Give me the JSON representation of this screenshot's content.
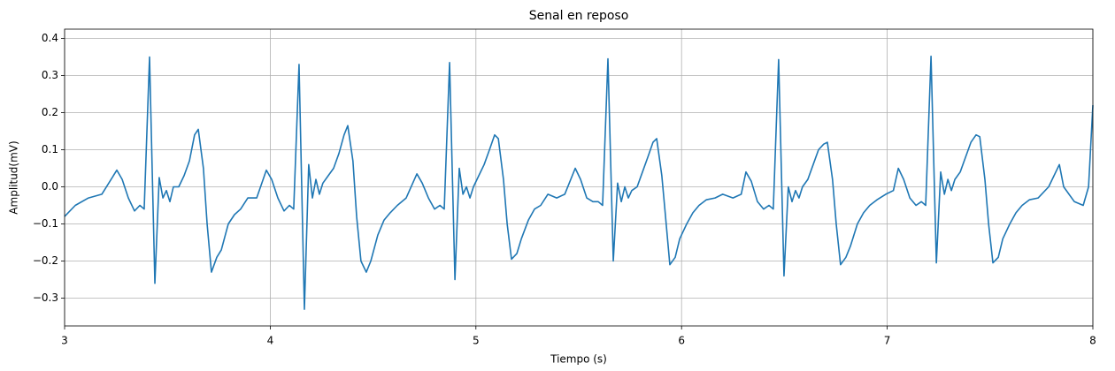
{
  "chart_data": {
    "type": "line",
    "title": "Senal en reposo",
    "xlabel": "Tiempo (s)",
    "ylabel": "Amplitud(mV)",
    "xlim": [
      3,
      8
    ],
    "xticks": [
      3,
      4,
      5,
      6,
      7,
      8
    ],
    "ylim": [
      -0.375,
      0.425
    ],
    "yticks": [
      {
        "value": -0.3,
        "label": "−0.3"
      },
      {
        "value": -0.2,
        "label": "−0.2"
      },
      {
        "value": -0.1,
        "label": "−0.1"
      },
      {
        "value": 0,
        "label": "0.0"
      },
      {
        "value": 0.1,
        "label": "0.1"
      },
      {
        "value": 0.2,
        "label": "0.2"
      },
      {
        "value": 0.3,
        "label": "0.3"
      },
      {
        "value": 0.4,
        "label": "0.4"
      }
    ],
    "grid": true,
    "color": "#1f77b4",
    "x": [
      3.0,
      3.052,
      3.116,
      3.181,
      3.254,
      3.28,
      3.31,
      3.34,
      3.366,
      3.387,
      3.413,
      3.439,
      3.46,
      3.478,
      3.495,
      3.512,
      3.529,
      3.555,
      3.581,
      3.607,
      3.632,
      3.65,
      3.675,
      3.693,
      3.714,
      3.74,
      3.762,
      3.796,
      3.826,
      3.856,
      3.891,
      3.934,
      3.981,
      4.007,
      4.037,
      4.067,
      4.093,
      4.114,
      4.14,
      4.166,
      4.187,
      4.205,
      4.222,
      4.239,
      4.256,
      4.282,
      4.308,
      4.334,
      4.359,
      4.377,
      4.402,
      4.42,
      4.441,
      4.467,
      4.489,
      4.523,
      4.553,
      4.583,
      4.618,
      4.661,
      4.713,
      4.739,
      4.769,
      4.799,
      4.825,
      4.846,
      4.872,
      4.898,
      4.919,
      4.937,
      4.954,
      4.971,
      4.988,
      5.014,
      5.04,
      5.066,
      5.091,
      5.109,
      5.134,
      5.152,
      5.173,
      5.199,
      5.221,
      5.255,
      5.285,
      5.315,
      5.35,
      5.393,
      5.432,
      5.483,
      5.509,
      5.539,
      5.569,
      5.595,
      5.616,
      5.642,
      5.668,
      5.689,
      5.707,
      5.724,
      5.741,
      5.758,
      5.784,
      5.81,
      5.836,
      5.861,
      5.879,
      5.904,
      5.922,
      5.943,
      5.969,
      5.991,
      6.025,
      6.055,
      6.085,
      6.12,
      6.163,
      6.2,
      6.25,
      6.29,
      6.313,
      6.339,
      6.369,
      6.399,
      6.425,
      6.446,
      6.472,
      6.498,
      6.519,
      6.537,
      6.554,
      6.571,
      6.588,
      6.614,
      6.64,
      6.666,
      6.691,
      6.709,
      6.734,
      6.752,
      6.773,
      6.799,
      6.821,
      6.855,
      6.885,
      6.915,
      6.95,
      6.993,
      7.03,
      7.054,
      7.08,
      7.11,
      7.14,
      7.166,
      7.187,
      7.213,
      7.239,
      7.26,
      7.278,
      7.295,
      7.312,
      7.329,
      7.355,
      7.381,
      7.407,
      7.432,
      7.45,
      7.475,
      7.493,
      7.514,
      7.54,
      7.562,
      7.596,
      7.626,
      7.656,
      7.691,
      7.734,
      7.785,
      7.837,
      7.858,
      7.91,
      7.953,
      7.979,
      8.0
    ],
    "values": [
      -0.08,
      -0.05,
      -0.03,
      -0.02,
      0.045,
      0.02,
      -0.03,
      -0.065,
      -0.05,
      -0.06,
      0.35,
      -0.26,
      0.025,
      -0.03,
      -0.01,
      -0.04,
      0.0,
      0.0,
      0.03,
      0.07,
      0.14,
      0.155,
      0.05,
      -0.1,
      -0.23,
      -0.19,
      -0.17,
      -0.1,
      -0.075,
      -0.06,
      -0.03,
      -0.03,
      0.045,
      0.02,
      -0.03,
      -0.065,
      -0.05,
      -0.06,
      0.33,
      -0.33,
      0.06,
      -0.03,
      0.02,
      -0.02,
      0.01,
      0.03,
      0.05,
      0.09,
      0.14,
      0.165,
      0.07,
      -0.08,
      -0.2,
      -0.23,
      -0.2,
      -0.13,
      -0.09,
      -0.07,
      -0.05,
      -0.03,
      0.035,
      0.01,
      -0.03,
      -0.06,
      -0.05,
      -0.06,
      0.335,
      -0.25,
      0.05,
      -0.02,
      0.0,
      -0.03,
      0.0,
      0.03,
      0.06,
      0.1,
      0.14,
      0.13,
      0.02,
      -0.1,
      -0.195,
      -0.18,
      -0.14,
      -0.09,
      -0.06,
      -0.05,
      -0.02,
      -0.03,
      -0.02,
      0.05,
      0.02,
      -0.03,
      -0.04,
      -0.04,
      -0.05,
      0.345,
      -0.2,
      0.01,
      -0.04,
      0.0,
      -0.03,
      -0.01,
      0.0,
      0.04,
      0.08,
      0.12,
      0.13,
      0.03,
      -0.08,
      -0.21,
      -0.19,
      -0.14,
      -0.1,
      -0.07,
      -0.05,
      -0.035,
      -0.03,
      -0.02,
      -0.03,
      -0.02,
      0.04,
      0.015,
      -0.04,
      -0.06,
      -0.05,
      -0.06,
      0.343,
      -0.24,
      0.0,
      -0.04,
      -0.01,
      -0.03,
      0.0,
      0.02,
      0.06,
      0.1,
      0.115,
      0.12,
      0.02,
      -0.1,
      -0.21,
      -0.19,
      -0.16,
      -0.1,
      -0.07,
      -0.05,
      -0.035,
      -0.02,
      -0.01,
      0.05,
      0.02,
      -0.03,
      -0.05,
      -0.04,
      -0.05,
      0.352,
      -0.205,
      0.04,
      -0.02,
      0.02,
      -0.01,
      0.02,
      0.04,
      0.08,
      0.12,
      0.14,
      0.135,
      0.02,
      -0.1,
      -0.205,
      -0.19,
      -0.14,
      -0.1,
      -0.07,
      -0.05,
      -0.035,
      -0.03,
      0.0,
      0.06,
      0.0,
      -0.04,
      -0.05,
      0.0,
      0.22
    ]
  }
}
